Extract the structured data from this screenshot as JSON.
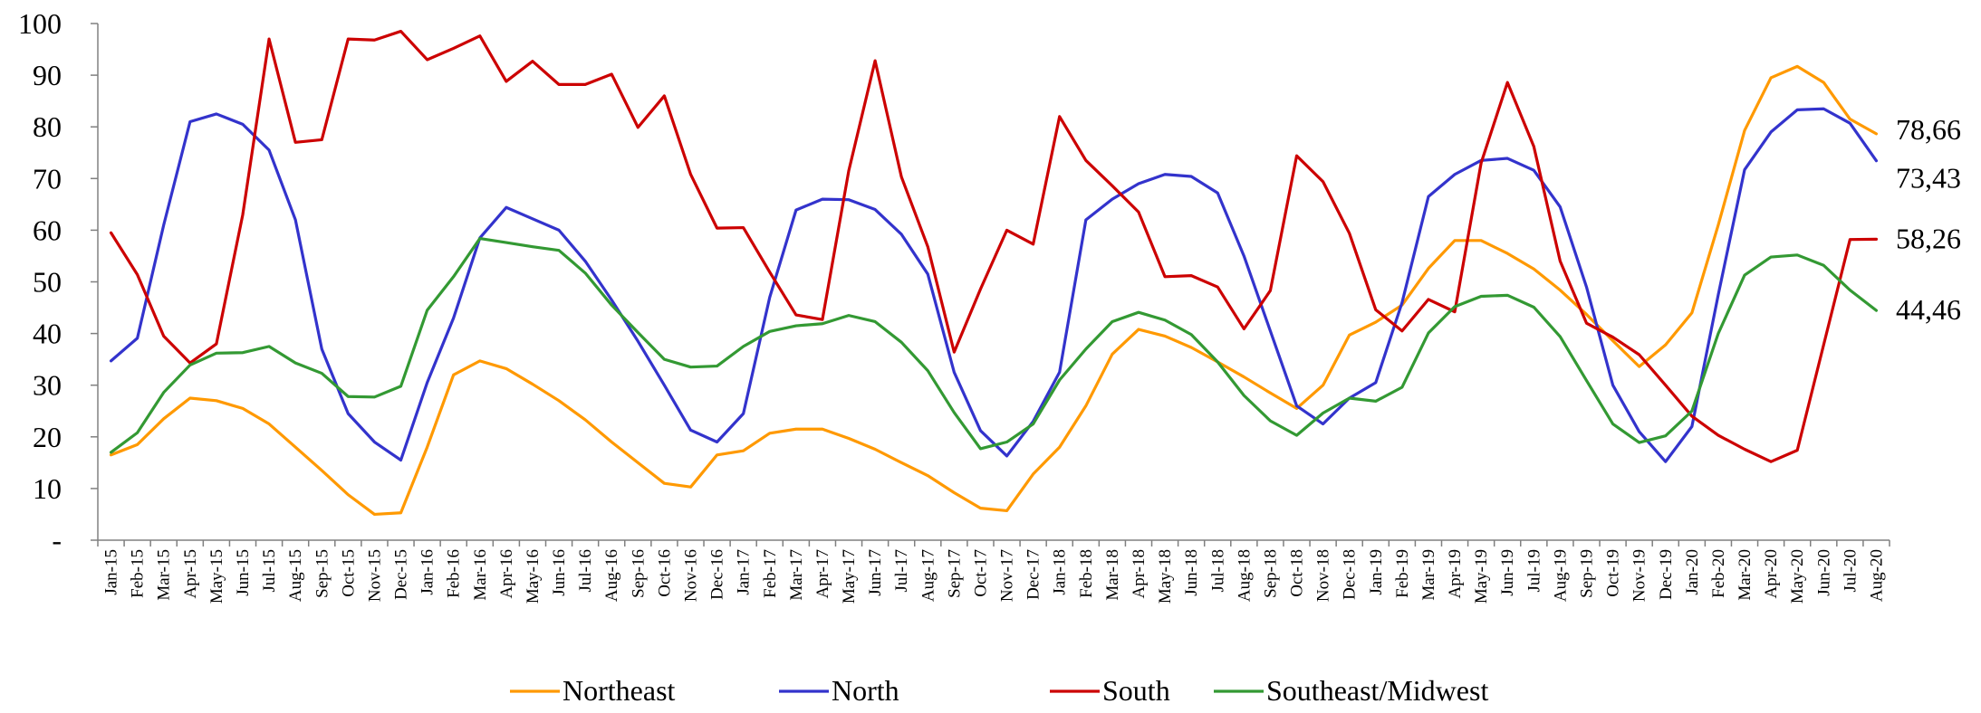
{
  "chart_data": {
    "type": "line",
    "xlabel": "",
    "ylabel": "",
    "ylim": [
      0,
      100
    ],
    "y_ticks": [
      "-",
      "10",
      "20",
      "30",
      "40",
      "50",
      "60",
      "70",
      "80",
      "90",
      "100"
    ],
    "grid": false,
    "legend_position": "bottom",
    "categories": [
      "Jan-15",
      "Feb-15",
      "Mar-15",
      "Apr-15",
      "May-15",
      "Jun-15",
      "Jul-15",
      "Aug-15",
      "Sep-15",
      "Oct-15",
      "Nov-15",
      "Dec-15",
      "Jan-16",
      "Feb-16",
      "Mar-16",
      "Apr-16",
      "May-16",
      "Jun-16",
      "Jul-16",
      "Aug-16",
      "Sep-16",
      "Oct-16",
      "Nov-16",
      "Dec-16",
      "Jan-17",
      "Feb-17",
      "Mar-17",
      "Apr-17",
      "May-17",
      "Jun-17",
      "Jul-17",
      "Aug-17",
      "Sep-17",
      "Oct-17",
      "Nov-17",
      "Dec-17",
      "Jan-18",
      "Feb-18",
      "Mar-18",
      "Apr-18",
      "May-18",
      "Jun-18",
      "Jul-18",
      "Aug-18",
      "Sep-18",
      "Oct-18",
      "Nov-18",
      "Dec-18",
      "Jan-19",
      "Feb-19",
      "Mar-19",
      "Apr-19",
      "May-19",
      "Jun-19",
      "Jul-19",
      "Aug-19",
      "Sep-19",
      "Oct-19",
      "Nov-19",
      "Dec-19",
      "Jan-20",
      "Feb-20",
      "Mar-20",
      "Apr-20",
      "May-20",
      "Jun-20",
      "Jul-20",
      "Aug-20"
    ],
    "series": [
      {
        "name": "Northeast",
        "color": "#FF9900",
        "end_label": "78,66",
        "values": [
          16.5,
          18.5,
          23.5,
          27.5,
          27,
          25.5,
          22.5,
          18,
          13.5,
          8.8,
          5,
          5.3,
          18,
          32,
          34.7,
          33.2,
          30.2,
          27,
          23.3,
          19,
          15,
          11,
          10.3,
          16.5,
          17.3,
          20.7,
          21.5,
          21.5,
          19.7,
          17.6,
          15,
          12.5,
          9.2,
          6.2,
          5.7,
          12.8,
          18,
          26,
          36,
          40.8,
          39.5,
          37.3,
          34.5,
          31.6,
          28.5,
          25.5,
          30,
          39.7,
          42.2,
          45.5,
          52.6,
          58,
          58,
          55.5,
          52.5,
          48.4,
          43.7,
          38.6,
          33.6,
          37.8,
          44,
          61,
          79.3,
          89.5,
          91.7,
          88.6,
          81.5,
          78.66
        ]
      },
      {
        "name": "North",
        "color": "#3333CC",
        "end_label": "73,43",
        "values": [
          34.7,
          39.1,
          61,
          81,
          82.5,
          80.5,
          75.5,
          62,
          37,
          24.5,
          19,
          15.5,
          30.5,
          43,
          58.5,
          64.4,
          62.2,
          60,
          54,
          46.5,
          38.5,
          30,
          21.3,
          19,
          24.5,
          47,
          63.9,
          66,
          65.9,
          64,
          59.2,
          51.5,
          32.5,
          21.2,
          16.3,
          23,
          32.5,
          62,
          66,
          69,
          70.8,
          70.4,
          67.2,
          55,
          40.5,
          26,
          22.5,
          27.5,
          30.5,
          46,
          66.5,
          70.8,
          73.5,
          73.9,
          71.6,
          64.5,
          49,
          30,
          21,
          15.2,
          22,
          47.5,
          71.7,
          79,
          83.3,
          83.5,
          80.7,
          73.43
        ]
      },
      {
        "name": "South",
        "color": "#CC0000",
        "end_label": "58,26",
        "values": [
          59.5,
          51.4,
          39.5,
          34.3,
          38,
          63,
          97,
          77,
          77.5,
          97,
          96.8,
          98.5,
          93,
          95.2,
          97.6,
          88.8,
          92.7,
          88.2,
          88.2,
          90.2,
          79.9,
          86,
          70.8,
          60.4,
          60.5,
          51.9,
          43.6,
          42.7,
          71.5,
          92.8,
          70.3,
          56.8,
          36.4,
          48.6,
          60,
          57.3,
          82,
          73.5,
          68.6,
          63.5,
          51,
          51.2,
          49,
          40.9,
          48.3,
          74.4,
          69.4,
          59.4,
          44.6,
          40.5,
          46.6,
          44.2,
          73,
          88.6,
          76.2,
          54,
          42,
          39.3,
          35.9,
          30,
          24,
          20.3,
          17.6,
          15.2,
          17.4,
          37.8,
          58.2,
          58.26
        ]
      },
      {
        "name": "Southeast/Midwest",
        "color": "#339933",
        "end_label": "44,46",
        "values": [
          17,
          20.8,
          28.6,
          33.9,
          36.2,
          36.3,
          37.5,
          34.3,
          32.3,
          27.8,
          27.7,
          29.8,
          44.5,
          51,
          58.4,
          57.6,
          56.8,
          56.1,
          51.7,
          45.5,
          40.2,
          35,
          33.5,
          33.7,
          37.5,
          40.4,
          41.5,
          41.9,
          43.5,
          42.3,
          38.3,
          32.8,
          24.7,
          17.7,
          19,
          22.5,
          31,
          37,
          42.3,
          44.1,
          42.6,
          39.8,
          34.5,
          28,
          23.1,
          20.3,
          24.6,
          27.5,
          26.9,
          29.6,
          40.1,
          45.2,
          47.2,
          47.4,
          45.1,
          39.4,
          30.9,
          22.5,
          18.9,
          20.2,
          25,
          40,
          51.3,
          54.8,
          55.2,
          53.2,
          48.4,
          44.46
        ]
      }
    ]
  }
}
